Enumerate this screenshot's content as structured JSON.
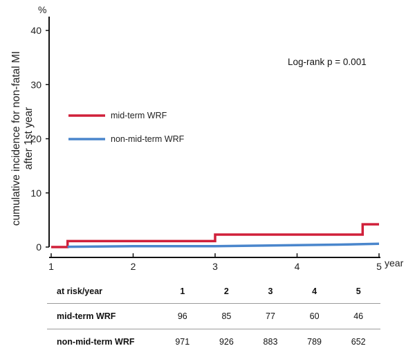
{
  "chart_data": {
    "type": "line",
    "step": true,
    "ylabel": "cumulative incidence for non-fatal MI after 1st year",
    "y_unit": "%",
    "x_unit": "year",
    "xlim": [
      1,
      5
    ],
    "ylim": [
      0,
      40
    ],
    "x_ticks": [
      "1",
      "2",
      "3",
      "4",
      "5"
    ],
    "y_ticks": [
      "0",
      "10",
      "20",
      "30",
      "40"
    ],
    "grid": false,
    "legend_position": "upper-left",
    "annotation": "Log-rank p = 0.001",
    "colors": {
      "mid": "#d0203a",
      "non_mid": "#4a86cc"
    },
    "series": [
      {
        "name": "mid-term WRF",
        "x": [
          1,
          1.2,
          1.2,
          3,
          3,
          4.8,
          4.8,
          5
        ],
        "y": [
          0,
          0,
          1.1,
          1.1,
          2.3,
          2.3,
          4.2,
          4.2
        ]
      },
      {
        "name": "non-mid-term WRF",
        "x": [
          1.2,
          2,
          3,
          3.5,
          4,
          4.5,
          5
        ],
        "y": [
          0.05,
          0.15,
          0.15,
          0.25,
          0.35,
          0.45,
          0.6
        ]
      }
    ]
  },
  "risk_table": {
    "header": [
      "at risk/year",
      "1",
      "2",
      "3",
      "4",
      "5"
    ],
    "rows": [
      {
        "label": "mid-term WRF",
        "values": [
          "96",
          "85",
          "77",
          "60",
          "46"
        ]
      },
      {
        "label": "non-mid-term WRF",
        "values": [
          "971",
          "926",
          "883",
          "789",
          "652"
        ]
      }
    ]
  }
}
